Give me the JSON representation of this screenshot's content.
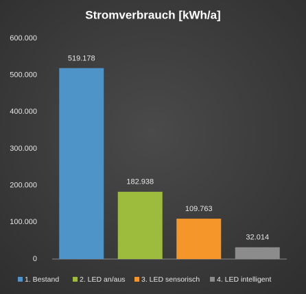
{
  "chart_data": {
    "type": "bar",
    "title": "Stromverbrauch  [kWh/a]",
    "categories": [
      "1. Bestand",
      "2. LED an/aus",
      "3. LED sensorisch",
      "4. LED intelligent"
    ],
    "values": [
      519178,
      182938,
      109763,
      32014
    ],
    "value_labels": [
      "519.178",
      "182.938",
      "109.763",
      "32.014"
    ],
    "colors": [
      "#4f94c9",
      "#9dbb3c",
      "#f5962a",
      "#8c8c8c"
    ],
    "ylim": [
      0,
      600000
    ],
    "yticks": [
      0,
      {
        "value": 100000,
        "label": "100.000"
      },
      {
        "value": 200000,
        "label": "200.000"
      },
      {
        "value": 300000,
        "label": "300.000"
      },
      {
        "value": 400000,
        "label": "400.000"
      },
      {
        "value": 500000,
        "label": "500.000"
      },
      {
        "value": 600000,
        "label": "600.000"
      }
    ],
    "grid": false,
    "legend": "bottom"
  }
}
